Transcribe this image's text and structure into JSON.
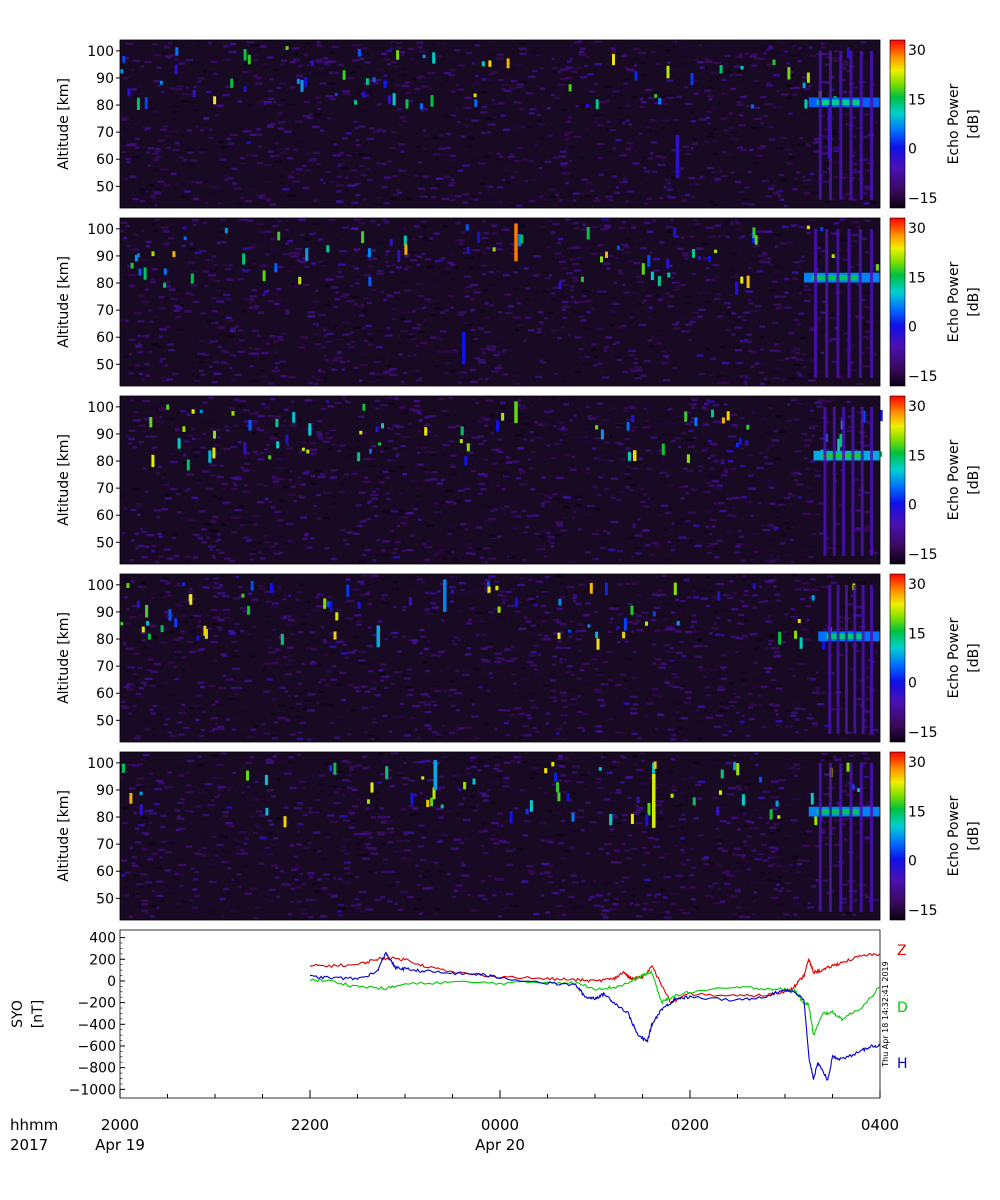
{
  "chart_data": [
    {
      "type": "heatmap",
      "ylabel": "Altitude [km]",
      "yticks": [
        50,
        60,
        70,
        80,
        90,
        100
      ],
      "ylim": [
        42,
        104
      ],
      "colorbar": {
        "label": "Echo Power",
        "units": "[dB]",
        "ticks": [
          -15,
          0,
          15,
          30
        ],
        "range": [
          -18,
          33
        ]
      },
      "features": [
        {
          "kind": "echo_layer",
          "t0": 3.25,
          "t1": 4.0,
          "alt": 81,
          "level": 12
        },
        {
          "kind": "column",
          "t": 1.85,
          "alt0": 53,
          "alt1": 69,
          "level": -3
        },
        {
          "kind": "column",
          "t": 3.45,
          "alt0": 60,
          "alt1": 80,
          "level": -5
        }
      ]
    },
    {
      "type": "heatmap",
      "ylabel": "Altitude [km]",
      "yticks": [
        50,
        60,
        70,
        80,
        90,
        100
      ],
      "ylim": [
        42,
        104
      ],
      "colorbar": {
        "label": "Echo Power",
        "units": "[dB]",
        "ticks": [
          -15,
          0,
          15,
          30
        ],
        "range": [
          -18,
          33
        ]
      },
      "features": [
        {
          "kind": "echo_layer",
          "t0": 3.2,
          "t1": 4.0,
          "alt": 82,
          "level": 14
        },
        {
          "kind": "column",
          "t": -0.4,
          "alt0": 50,
          "alt1": 62,
          "level": 0
        },
        {
          "kind": "column",
          "t": 0.15,
          "alt0": 88,
          "alt1": 102,
          "level": 28
        }
      ]
    },
    {
      "type": "heatmap",
      "ylabel": "Altitude [km]",
      "yticks": [
        50,
        60,
        70,
        80,
        90,
        100
      ],
      "ylim": [
        42,
        104
      ],
      "colorbar": {
        "label": "Echo Power",
        "units": "[dB]",
        "ticks": [
          -15,
          0,
          15,
          30
        ],
        "range": [
          -18,
          33
        ]
      },
      "features": [
        {
          "kind": "echo_layer",
          "t0": 3.3,
          "t1": 4.0,
          "alt": 82,
          "level": 16
        },
        {
          "kind": "column",
          "t": 0.15,
          "alt0": 94,
          "alt1": 102,
          "level": 18
        },
        {
          "kind": "column",
          "t": 1.4,
          "alt0": 80,
          "alt1": 84,
          "level": 24
        }
      ]
    },
    {
      "type": "heatmap",
      "ylabel": "Altitude [km]",
      "yticks": [
        50,
        60,
        70,
        80,
        90,
        100
      ],
      "ylim": [
        42,
        104
      ],
      "colorbar": {
        "label": "Echo Power",
        "units": "[dB]",
        "ticks": [
          -15,
          0,
          15,
          30
        ],
        "range": [
          -18,
          33
        ]
      },
      "features": [
        {
          "kind": "echo_layer",
          "t0": 3.35,
          "t1": 4.0,
          "alt": 81,
          "level": 13
        },
        {
          "kind": "column",
          "t": -0.6,
          "alt0": 90,
          "alt1": 102,
          "level": 6
        },
        {
          "kind": "column",
          "t": -1.3,
          "alt0": 77,
          "alt1": 85,
          "level": 8
        }
      ]
    },
    {
      "type": "heatmap",
      "ylabel": "Altitude [km]",
      "yticks": [
        50,
        60,
        70,
        80,
        90,
        100
      ],
      "ylim": [
        42,
        104
      ],
      "colorbar": {
        "label": "Echo Power",
        "units": "[dB]",
        "ticks": [
          -15,
          0,
          15,
          30
        ],
        "range": [
          -18,
          33
        ]
      },
      "features": [
        {
          "kind": "echo_layer",
          "t0": 3.25,
          "t1": 4.0,
          "alt": 82,
          "level": 14
        },
        {
          "kind": "column",
          "t": 1.6,
          "alt0": 76,
          "alt1": 96,
          "level": 22
        },
        {
          "kind": "column",
          "t": -0.7,
          "alt0": 90,
          "alt1": 101,
          "level": 8
        }
      ]
    },
    {
      "type": "line",
      "ylabel": "SYO",
      "yunits": "[nT]",
      "yticks": [
        400,
        200,
        0,
        -200,
        -400,
        -600,
        -800,
        -1000
      ],
      "ylim": [
        -1080,
        470
      ],
      "stamp": "Thu Apr 18 14:32:41 2019",
      "series": [
        {
          "name": "Z",
          "color": "#dd0000",
          "x": [
            -2.0,
            -1.8,
            -1.5,
            -1.3,
            -1.2,
            -1.0,
            -0.8,
            -0.5,
            0,
            0.5,
            0.8,
            1.0,
            1.2,
            1.3,
            1.35,
            1.4,
            1.5,
            1.6,
            1.8,
            2.0,
            2.5,
            2.8,
            3.0,
            3.1,
            3.2,
            3.25,
            3.3,
            3.4,
            3.5,
            3.6,
            3.8,
            4.0
          ],
          "y": [
            140,
            140,
            150,
            200,
            210,
            200,
            140,
            80,
            40,
            20,
            10,
            0,
            20,
            80,
            40,
            20,
            40,
            130,
            -200,
            -120,
            -140,
            -130,
            -100,
            -50,
            50,
            200,
            80,
            100,
            140,
            170,
            230,
            250
          ]
        },
        {
          "name": "D",
          "color": "#00cc00",
          "x": [
            -2.0,
            -1.8,
            -1.5,
            -1.2,
            -1.0,
            -0.5,
            0,
            0.5,
            0.8,
            1.0,
            1.2,
            1.35,
            1.5,
            1.6,
            1.7,
            1.8,
            2.0,
            2.5,
            2.8,
            3.0,
            3.1,
            3.2,
            3.25,
            3.3,
            3.4,
            3.5,
            3.6,
            3.8,
            4.0
          ],
          "y": [
            10,
            0,
            -50,
            -70,
            -30,
            -10,
            -20,
            -10,
            -20,
            -70,
            -60,
            -20,
            50,
            80,
            -200,
            -150,
            -100,
            -60,
            -70,
            -80,
            -90,
            -200,
            -220,
            -500,
            -300,
            -290,
            -350,
            -250,
            -50
          ]
        },
        {
          "name": "H",
          "color": "#0000cc",
          "x": [
            -2.0,
            -1.8,
            -1.5,
            -1.3,
            -1.2,
            -1.1,
            -1.0,
            -0.8,
            -0.5,
            -0.2,
            0,
            0.5,
            0.8,
            0.9,
            1.0,
            1.1,
            1.2,
            1.35,
            1.45,
            1.55,
            1.6,
            1.7,
            1.8,
            1.85,
            2.0,
            2.5,
            2.8,
            3.0,
            3.1,
            3.2,
            3.25,
            3.3,
            3.35,
            3.45,
            3.5,
            3.6,
            3.8,
            3.9,
            4.0
          ],
          "y": [
            40,
            30,
            20,
            80,
            260,
            120,
            110,
            90,
            70,
            60,
            30,
            -20,
            -40,
            -150,
            -160,
            -120,
            -200,
            -300,
            -500,
            -560,
            -400,
            -260,
            -200,
            -160,
            -150,
            -180,
            -140,
            -80,
            -100,
            -180,
            -700,
            -900,
            -750,
            -920,
            -700,
            -720,
            -650,
            -600,
            -600
          ]
        }
      ]
    }
  ],
  "time_axis": {
    "tick_labels": [
      "2000",
      "2200",
      "0000",
      "0200",
      "0400"
    ],
    "date_labels": [
      "Apr 19",
      "Apr 20"
    ],
    "row_label_1": "hhmm",
    "row_label_2": "2017"
  }
}
